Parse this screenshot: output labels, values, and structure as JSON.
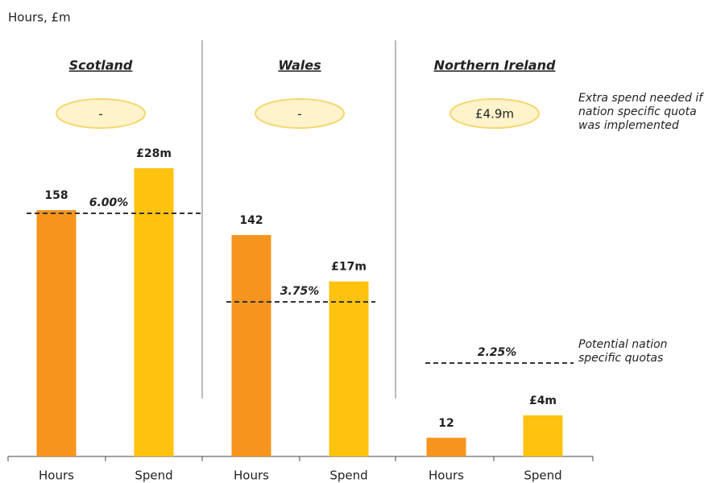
{
  "chart_data": {
    "type": "bar",
    "y_label": "Hours, £m",
    "groups": [
      "Scotland",
      "Wales",
      "Northern Ireland"
    ],
    "series": [
      {
        "name": "Hours",
        "color": "#f7941d",
        "values": [
          158,
          142,
          12
        ]
      },
      {
        "name": "Spend",
        "color": "#ffc20e",
        "values": [
          28,
          17,
          4
        ],
        "value_labels": [
          "£28m",
          "£17m",
          "£4m"
        ]
      }
    ],
    "extra_spend": [
      "-",
      "-",
      "£4.9m"
    ],
    "quotas": [
      "6.00%",
      "3.75%",
      "2.25%"
    ],
    "extra_spend_note": [
      "Extra spend needed if",
      "nation specific quota",
      "was implemented"
    ],
    "quota_note": [
      "Potential nation",
      "specific quotas"
    ]
  }
}
